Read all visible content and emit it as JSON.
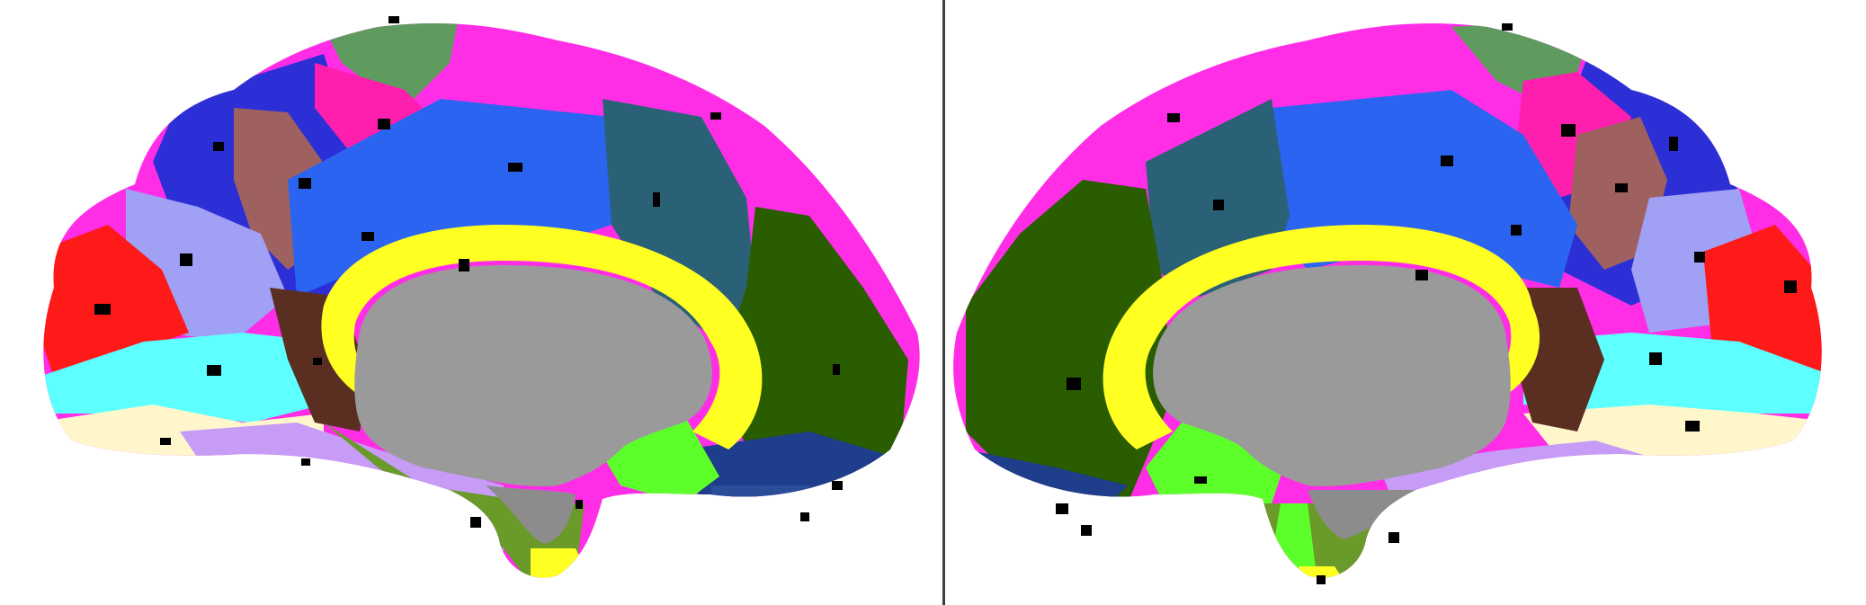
{
  "view": {
    "panels": [
      {
        "id": "left",
        "hemisphere_view": "medial"
      },
      {
        "id": "right",
        "hemisphere_view": "medial"
      }
    ],
    "colors": {
      "background": "#ffffff",
      "divider": "#3d3d3d",
      "medial_wall": "#9a9a9a",
      "parcels": {
        "magenta": "#ff2ee6",
        "hot_pink": "#ff1fae",
        "yellow": "#ffff22",
        "dark_green": "#2a5c00",
        "teal": "#2b6177",
        "blue": "#2a64f0",
        "royal_blue": "#2d2fd6",
        "sage": "#5f9a5f",
        "mauve": "#9e615f",
        "lavender": "#a0a0f4",
        "red": "#ff1a1a",
        "cyan": "#5dffff",
        "cream": "#fff6cc",
        "lilac": "#c69cf6",
        "brown": "#5a2f22",
        "lime": "#5cff2a",
        "olive": "#6a9a2a",
        "navy": "#1e3d8a",
        "steel_blue": "#2a4d9a"
      }
    }
  }
}
